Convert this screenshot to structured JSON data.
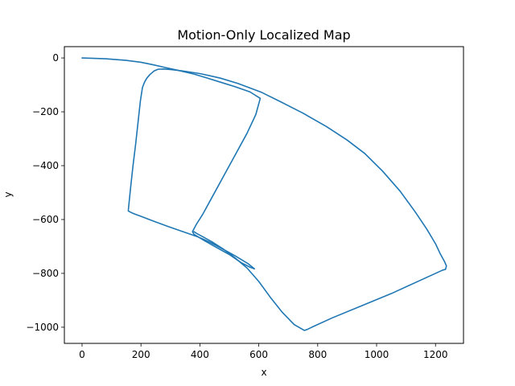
{
  "chart_data": {
    "type": "line",
    "title": "Motion-Only Localized Map",
    "xlabel": "x",
    "ylabel": "y",
    "xlim": [
      -60,
      1295
    ],
    "ylim": [
      -1060,
      42
    ],
    "xticks": [
      0,
      200,
      400,
      600,
      800,
      1000,
      1200
    ],
    "yticks": [
      0,
      -200,
      -400,
      -600,
      -800,
      -1000
    ],
    "xtick_labels": [
      "0",
      "200",
      "400",
      "600",
      "800",
      "1000",
      "1200"
    ],
    "ytick_labels": [
      "0",
      "−200",
      "−400",
      "−600",
      "−800",
      "−1000"
    ],
    "grid": false,
    "line_color": "#1f77b4",
    "series": [
      {
        "x": [
          0,
          80,
          150,
          200,
          240,
          280,
          330,
          380,
          420,
          470,
          520,
          570,
          605,
          590,
          560,
          520,
          480,
          440,
          410,
          388,
          375,
          380,
          410,
          450,
          500,
          540,
          570,
          585
        ],
        "y": [
          0,
          -3,
          -9,
          -16,
          -25,
          -35,
          -47,
          -60,
          -73,
          -90,
          -107,
          -126,
          -150,
          -210,
          -280,
          -360,
          -440,
          -520,
          -580,
          -618,
          -645,
          -655,
          -675,
          -700,
          -730,
          -760,
          -777,
          -783
        ]
      },
      {
        "x": [
          585,
          565,
          520,
          470,
          430,
          390,
          340,
          290,
          240,
          200,
          175,
          165,
          157,
          158,
          165,
          173,
          182,
          190,
          198,
          205,
          212,
          220,
          230,
          245,
          258,
          275,
          300,
          340,
          400,
          470,
          530,
          610,
          680,
          750,
          830,
          900,
          960,
          1020,
          1080,
          1130,
          1170,
          1200,
          1215,
          1230,
          1237,
          1234,
          1224,
          1150,
          1050,
          950,
          850,
          780,
          765,
          755,
          720,
          680,
          640,
          600,
          560,
          520,
          480,
          440,
          410,
          388,
          380
        ],
        "y": [
          -783,
          -765,
          -735,
          -705,
          -682,
          -663,
          -644,
          -625,
          -605,
          -588,
          -578,
          -573,
          -568,
          -555,
          -480,
          -400,
          -320,
          -240,
          -160,
          -110,
          -90,
          -75,
          -62,
          -48,
          -42,
          -41,
          -43,
          -48,
          -58,
          -75,
          -95,
          -128,
          -166,
          -205,
          -255,
          -305,
          -355,
          -420,
          -495,
          -570,
          -635,
          -690,
          -725,
          -755,
          -772,
          -785,
          -788,
          -825,
          -875,
          -920,
          -965,
          -1000,
          -1008,
          -1012,
          -990,
          -945,
          -890,
          -830,
          -780,
          -743,
          -710,
          -682,
          -664,
          -651,
          -645
        ]
      }
    ]
  }
}
